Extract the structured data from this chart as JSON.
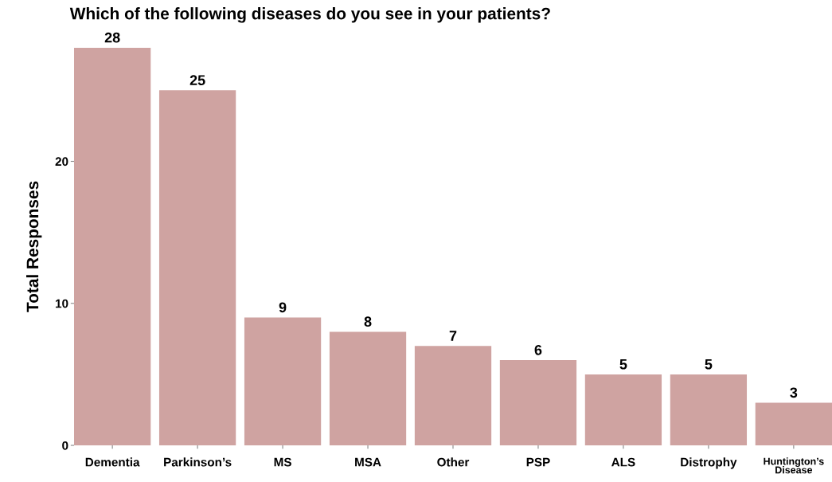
{
  "chart_data": {
    "type": "bar",
    "title": "Which of the following diseases do you see in your patients?",
    "ylabel": "Total Responses",
    "categories": [
      "Dementia",
      "Parkinson’s",
      "MS",
      "MSA",
      "Other",
      "PSP",
      "ALS",
      "Distrophy",
      "Huntington’s\nDisease"
    ],
    "values": [
      28,
      25,
      9,
      8,
      7,
      6,
      5,
      5,
      3
    ],
    "color": "#cfa3a1",
    "ylim": [
      0,
      28
    ],
    "yticks": [
      0,
      10,
      20
    ],
    "grid": false,
    "data_labels": true
  }
}
